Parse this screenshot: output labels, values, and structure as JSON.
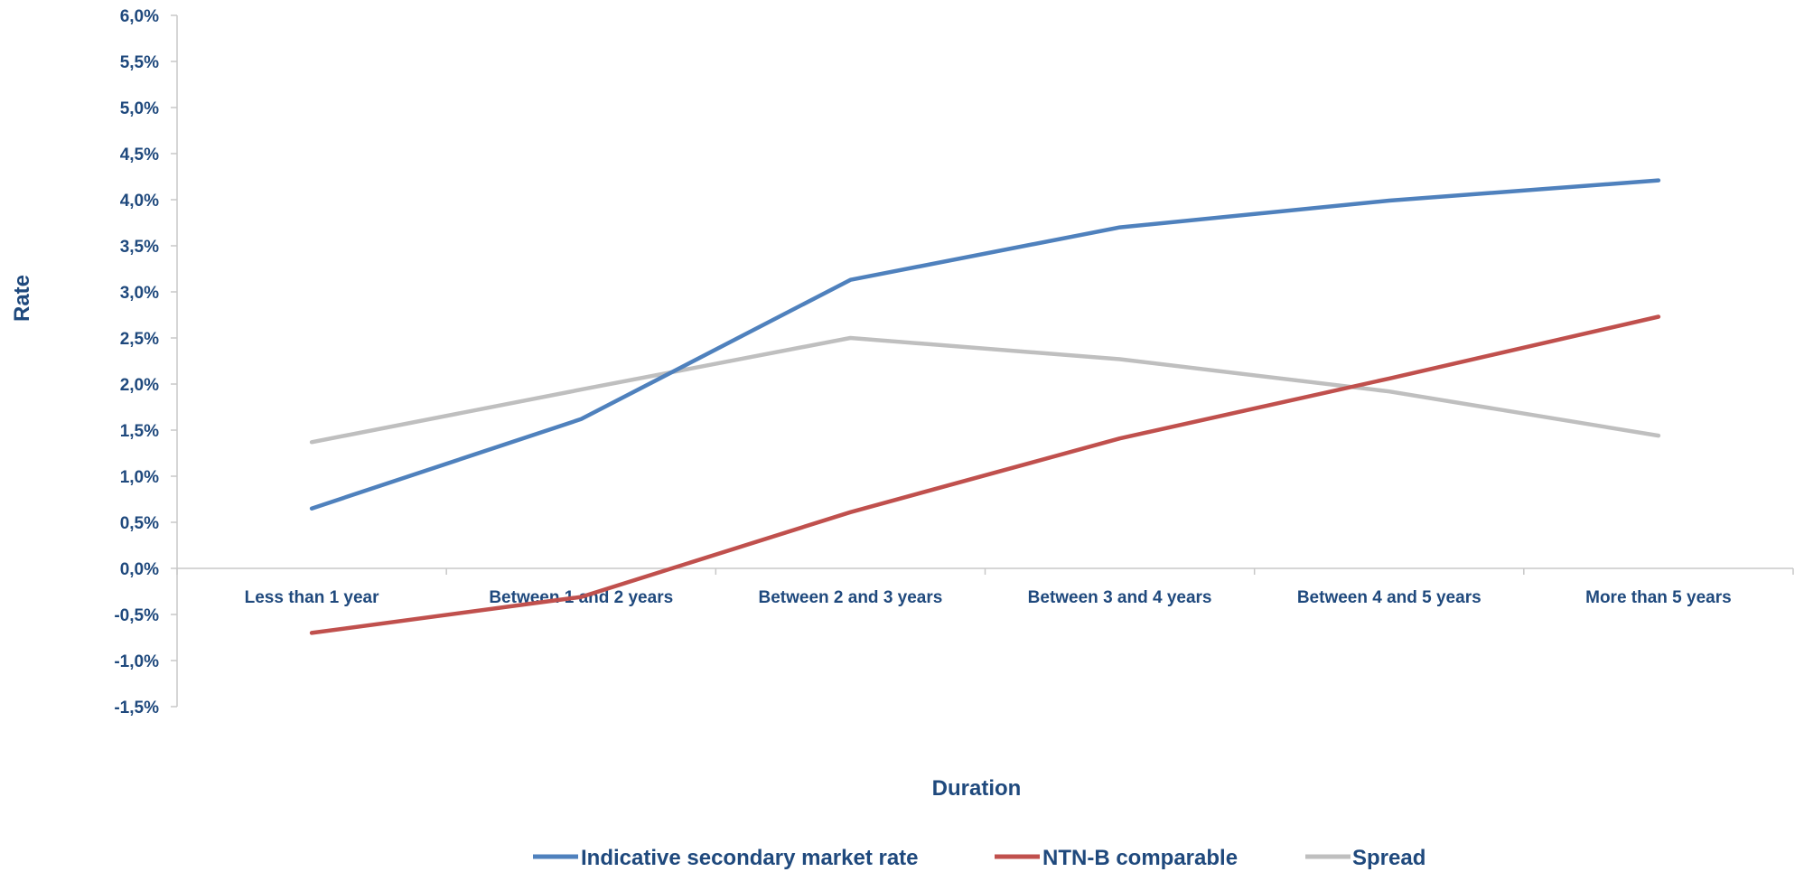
{
  "chart_data": {
    "type": "line",
    "title": "",
    "xlabel": "Duration",
    "ylabel": "Rate",
    "categories": [
      "Less than 1 year",
      "Between 1 and 2 years",
      "Between 2 and 3 years",
      "Between 3 and 4 years",
      "Between 4 and 5 years",
      "More than 5 years"
    ],
    "ylim": [
      -1.5,
      6.0
    ],
    "ystep": 0.5,
    "ytick_labels": [
      "6,0%",
      "5,5%",
      "5,0%",
      "4,5%",
      "4,0%",
      "3,5%",
      "3,0%",
      "2,5%",
      "2,0%",
      "1,5%",
      "1,0%",
      "0,5%",
      "0,0%",
      "-0,5%",
      "-1,0%",
      "-1,5%"
    ],
    "grid": false,
    "legend_position": "bottom",
    "series": [
      {
        "name": "Indicative secondary market rate",
        "color": "#4f81bd",
        "values": [
          0.65,
          1.62,
          3.13,
          3.7,
          3.99,
          4.21
        ]
      },
      {
        "name": "NTN-B comparable",
        "color": "#c0504d",
        "values": [
          -0.7,
          -0.31,
          0.61,
          1.41,
          2.06,
          2.73
        ]
      },
      {
        "name": "Spread",
        "color": "#bfbfbf",
        "values": [
          1.37,
          1.94,
          2.5,
          2.27,
          1.92,
          1.44
        ]
      }
    ]
  }
}
